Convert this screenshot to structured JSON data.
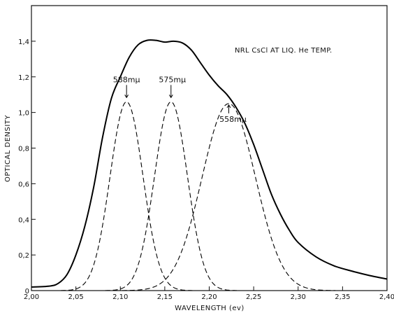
{
  "chart_data": {
    "type": "line",
    "title": "NRL CsCl AT LIQ. He TEMP.",
    "xlabel": "WAVELENGTH   (ev)",
    "ylabel": "OPTICAL DENSITY",
    "xlim": [
      2.0,
      2.4
    ],
    "ylim": [
      0.0,
      1.6
    ],
    "x_ticks": [
      2.0,
      2.05,
      2.1,
      2.15,
      2.2,
      2.25,
      2.3,
      2.35,
      2.4
    ],
    "x_tick_labels": [
      "2,00",
      "2,05",
      "2,10",
      "2,15",
      "2,20",
      "2,25",
      "2,30",
      "2,35",
      "2,40"
    ],
    "y_ticks": [
      0.0,
      0.2,
      0.4,
      0.6,
      0.8,
      1.0,
      1.2,
      1.4
    ],
    "y_tick_labels": [
      "0",
      "0,2",
      "0,4",
      "0,6",
      "0,8",
      "1,0",
      "1,2",
      "1,4"
    ],
    "grid": false,
    "series": [
      {
        "style": "solid",
        "points": [
          [
            2.0,
            0.02
          ],
          [
            2.02,
            0.025
          ],
          [
            2.03,
            0.04
          ],
          [
            2.04,
            0.09
          ],
          [
            2.05,
            0.2
          ],
          [
            2.06,
            0.36
          ],
          [
            2.07,
            0.58
          ],
          [
            2.08,
            0.86
          ],
          [
            2.09,
            1.08
          ],
          [
            2.1,
            1.2
          ],
          [
            2.11,
            1.31
          ],
          [
            2.12,
            1.38
          ],
          [
            2.13,
            1.405
          ],
          [
            2.14,
            1.405
          ],
          [
            2.15,
            1.395
          ],
          [
            2.16,
            1.4
          ],
          [
            2.17,
            1.39
          ],
          [
            2.18,
            1.35
          ],
          [
            2.19,
            1.28
          ],
          [
            2.2,
            1.21
          ],
          [
            2.21,
            1.15
          ],
          [
            2.22,
            1.1
          ],
          [
            2.23,
            1.03
          ],
          [
            2.24,
            0.94
          ],
          [
            2.25,
            0.82
          ],
          [
            2.26,
            0.68
          ],
          [
            2.27,
            0.54
          ],
          [
            2.28,
            0.43
          ],
          [
            2.29,
            0.34
          ],
          [
            2.3,
            0.27
          ],
          [
            2.32,
            0.19
          ],
          [
            2.34,
            0.14
          ],
          [
            2.36,
            0.11
          ],
          [
            2.38,
            0.085
          ],
          [
            2.4,
            0.065
          ]
        ]
      },
      {
        "style": "dashed",
        "shape": "gaussian",
        "center": 2.107,
        "peak": 1.06,
        "sigma": 0.0185
      },
      {
        "style": "dashed",
        "shape": "gaussian",
        "center": 2.157,
        "peak": 1.06,
        "sigma": 0.0185
      },
      {
        "style": "dashed",
        "shape": "gaussian",
        "center": 2.222,
        "peak": 1.05,
        "sigma": 0.03
      }
    ],
    "annotations": [
      {
        "text": "588mμ",
        "x": 2.107,
        "y": 1.06
      },
      {
        "text": "575mμ",
        "x": 2.157,
        "y": 1.06
      },
      {
        "text": "558mμ",
        "x": 2.222,
        "y": 1.05
      }
    ]
  }
}
